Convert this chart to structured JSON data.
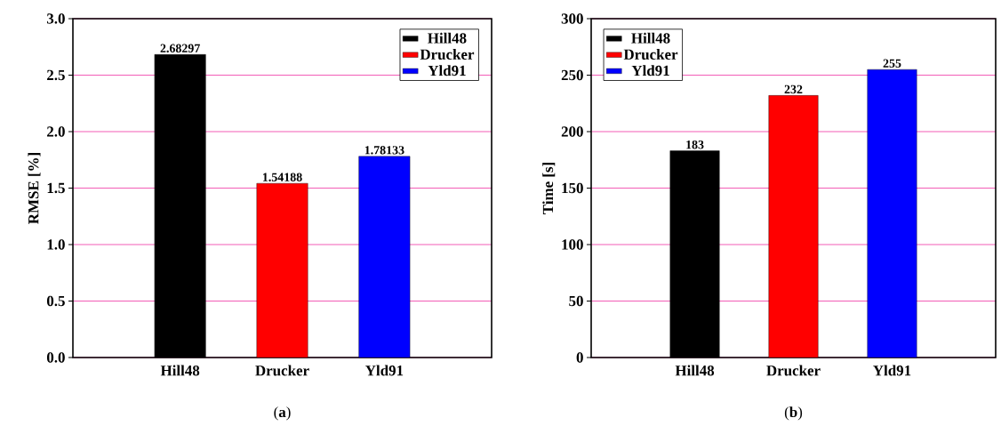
{
  "chart_data": [
    {
      "type": "bar",
      "ylabel": "RMSE [%]",
      "categories": [
        "Hill48",
        "Drucker",
        "Yld91"
      ],
      "series": [
        {
          "name": "Hill48",
          "color": "#000000",
          "values": [
            2.68297,
            null,
            null
          ]
        },
        {
          "name": "Drucker",
          "color": "#ff0000",
          "values": [
            null,
            1.54188,
            null
          ]
        },
        {
          "name": "Yld91",
          "color": "#0000ff",
          "values": [
            null,
            null,
            1.78133
          ]
        }
      ],
      "ylim": [
        0,
        3.0
      ],
      "yticks": [
        {
          "value": 0,
          "label": "0.0"
        },
        0.5,
        {
          "value": 1,
          "label": "1.0"
        },
        1.5,
        {
          "value": 2,
          "label": "2.0"
        },
        2.5,
        {
          "value": 3,
          "label": "3.0"
        }
      ],
      "grid": "y",
      "legend": "top right",
      "data_labels": true,
      "annotations": [
        "(**a**)"
      ]
    },
    {
      "type": "bar",
      "ylabel": "Time [s]",
      "categories": [
        "Hill48",
        "Drucker",
        "Yld91"
      ],
      "series": [
        {
          "name": "Hill48",
          "color": "#000000",
          "values": [
            183,
            null,
            null
          ]
        },
        {
          "name": "Drucker",
          "color": "#ff0000",
          "values": [
            null,
            232,
            null
          ]
        },
        {
          "name": "Yld91",
          "color": "#0000ff",
          "values": [
            null,
            null,
            255
          ]
        }
      ],
      "ylim": [
        0,
        300
      ],
      "yticks": [
        0,
        50,
        100,
        150,
        200,
        250,
        300
      ],
      "grid": "y",
      "legend": "top left",
      "data_labels": true,
      "annotations": [
        "(**b**)"
      ]
    }
  ]
}
